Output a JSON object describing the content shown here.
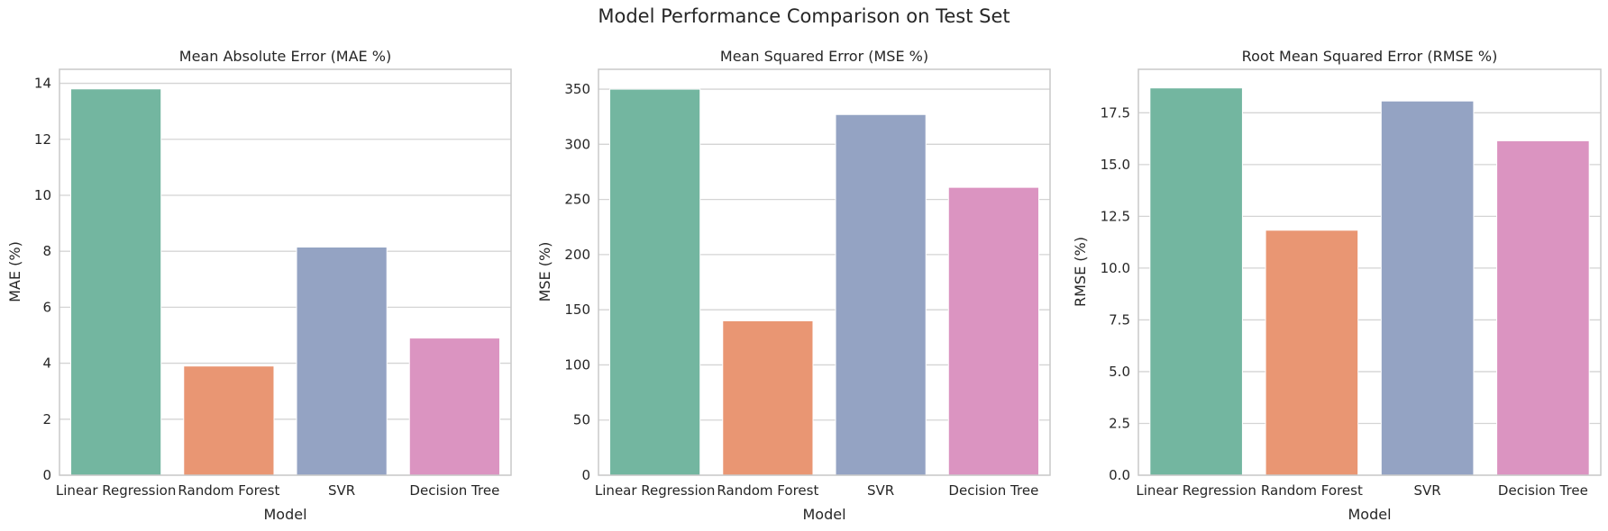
{
  "figure": {
    "title": "Model Performance Comparison on Test Set"
  },
  "chart_data": [
    {
      "type": "bar",
      "title": "Mean Absolute Error (MAE %)",
      "xlabel": "Model",
      "ylabel": "MAE (%)",
      "categories": [
        "Linear Regression",
        "Random Forest",
        "SVR",
        "Decision Tree"
      ],
      "values": [
        13.8,
        3.9,
        8.15,
        4.9
      ],
      "colors": [
        "#73b6a0",
        "#e99673",
        "#94a3c3",
        "#db94c1"
      ],
      "ylim": [
        0,
        14.5
      ],
      "yticks": [
        0,
        2,
        4,
        6,
        8,
        10,
        12,
        14
      ],
      "ytick_labels": [
        "0",
        "2",
        "4",
        "6",
        "8",
        "10",
        "12",
        "14"
      ],
      "grid": true
    },
    {
      "type": "bar",
      "title": "Mean Squared Error (MSE %)",
      "xlabel": "Model",
      "ylabel": "MSE (%)",
      "categories": [
        "Linear Regression",
        "Random Forest",
        "SVR",
        "Decision Tree"
      ],
      "values": [
        350,
        140,
        327,
        261
      ],
      "colors": [
        "#73b6a0",
        "#e99673",
        "#94a3c3",
        "#db94c1"
      ],
      "ylim": [
        0,
        368
      ],
      "yticks": [
        0,
        50,
        100,
        150,
        200,
        250,
        300,
        350
      ],
      "ytick_labels": [
        "0",
        "50",
        "100",
        "150",
        "200",
        "250",
        "300",
        "350"
      ],
      "grid": true
    },
    {
      "type": "bar",
      "title": "Root Mean Squared Error (RMSE %)",
      "xlabel": "Model",
      "ylabel": "RMSE (%)",
      "categories": [
        "Linear Regression",
        "Random Forest",
        "SVR",
        "Decision Tree"
      ],
      "values": [
        18.7,
        11.83,
        18.07,
        16.15
      ],
      "colors": [
        "#73b6a0",
        "#e99673",
        "#94a3c3",
        "#db94c1"
      ],
      "ylim": [
        0,
        19.6
      ],
      "yticks": [
        0,
        2.5,
        5,
        7.5,
        10,
        12.5,
        15,
        17.5
      ],
      "ytick_labels": [
        "0.0",
        "2.5",
        "5.0",
        "7.5",
        "10.0",
        "12.5",
        "15.0",
        "17.5"
      ],
      "grid": true
    }
  ]
}
